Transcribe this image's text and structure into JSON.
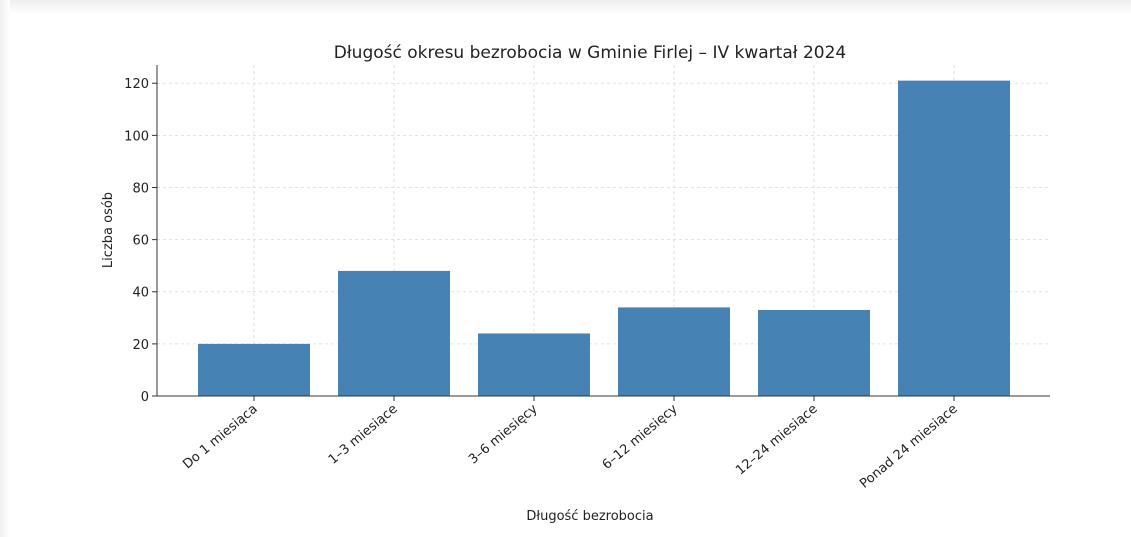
{
  "chart_data": {
    "type": "bar",
    "title": "Długość okresu bezrobocia w Gminie Firlej – IV kwartał 2024",
    "xlabel": "Długość bezrobocia",
    "ylabel": "Liczba osób",
    "categories": [
      "Do 1 miesiąca",
      "1–3 miesiące",
      "3–6 miesięcy",
      "6–12 miesięcy",
      "12–24 miesiące",
      "Ponad 24 miesiące"
    ],
    "values": [
      20,
      48,
      24,
      34,
      33,
      121
    ],
    "yticks": [
      0,
      20,
      40,
      60,
      80,
      100,
      120
    ],
    "ylim": [
      0,
      127
    ],
    "grid": true,
    "bar_color": "#4682b4"
  }
}
